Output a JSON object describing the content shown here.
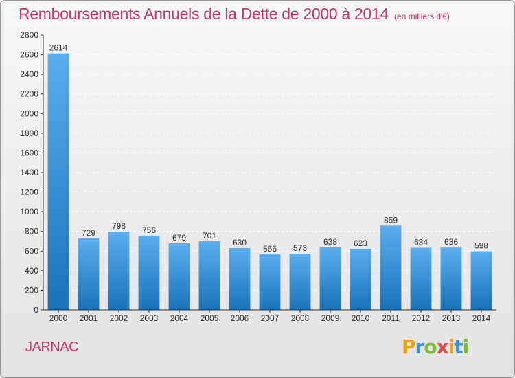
{
  "header": {
    "title": "Remboursements Annuels de la Dette de 2000 à 2014",
    "subtitle": "(en milliers d'€)"
  },
  "footer": {
    "city": "JARNAC",
    "logo_text": "Proxiti"
  },
  "colors": {
    "title": "#cc3366",
    "city": "#cc3366",
    "bar_top": "#5aaef0",
    "bar_bottom": "#1a72b8",
    "axis": "#333333",
    "grid": "#ffffff",
    "logo_letters": [
      "#e8a317",
      "#3a8fd9",
      "#7db83a",
      "#e84a4a",
      "#e8a317",
      "#3a8fd9",
      "#7db83a"
    ]
  },
  "chart_data": {
    "type": "bar",
    "categories": [
      "2000",
      "2001",
      "2002",
      "2003",
      "2004",
      "2005",
      "2006",
      "2007",
      "2008",
      "2009",
      "2010",
      "2011",
      "2012",
      "2013",
      "2014"
    ],
    "values": [
      2614,
      729,
      798,
      756,
      679,
      701,
      630,
      566,
      573,
      638,
      623,
      859,
      634,
      636,
      598
    ],
    "ylim": [
      0,
      2800
    ],
    "yticks": [
      0,
      200,
      400,
      600,
      800,
      1000,
      1200,
      1400,
      1600,
      1800,
      2000,
      2200,
      2400,
      2600,
      2800
    ],
    "grid": "horizontal dashed",
    "data_labels": true
  }
}
